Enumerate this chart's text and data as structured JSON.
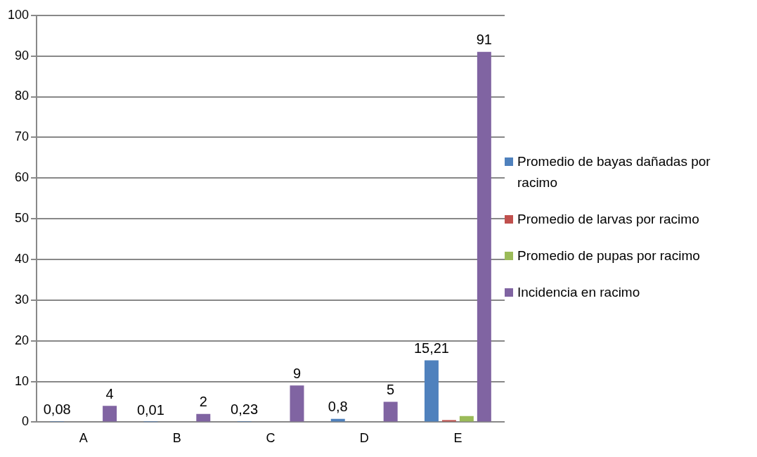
{
  "chart_data": {
    "type": "bar",
    "categories": [
      "A",
      "B",
      "C",
      "D",
      "E"
    ],
    "series": [
      {
        "name": "Promedio de bayas dañadas por racimo",
        "color": "#4f81bd",
        "values": [
          0.08,
          0.01,
          0.23,
          0.8,
          15.21
        ],
        "value_labels": [
          "0,08",
          "0,01",
          "0,23",
          "0,8",
          "15,21"
        ]
      },
      {
        "name": "Promedio de larvas por racimo",
        "color": "#c0504d",
        "values": [
          0,
          0,
          0,
          0,
          0.5
        ]
      },
      {
        "name": "Promedio de pupas por racimo",
        "color": "#9bbb59",
        "values": [
          0,
          0,
          0,
          0,
          1.5
        ]
      },
      {
        "name": "Incidencia en racimo",
        "color": "#8064a2",
        "values": [
          4,
          2,
          9,
          5,
          91
        ],
        "value_labels": [
          "4",
          "2",
          "9",
          "5",
          "91"
        ]
      }
    ],
    "ylim": [
      0,
      100
    ],
    "yticks": [
      0,
      10,
      20,
      30,
      40,
      50,
      60,
      70,
      80,
      90,
      100
    ],
    "grid": "y",
    "legend": "right"
  }
}
